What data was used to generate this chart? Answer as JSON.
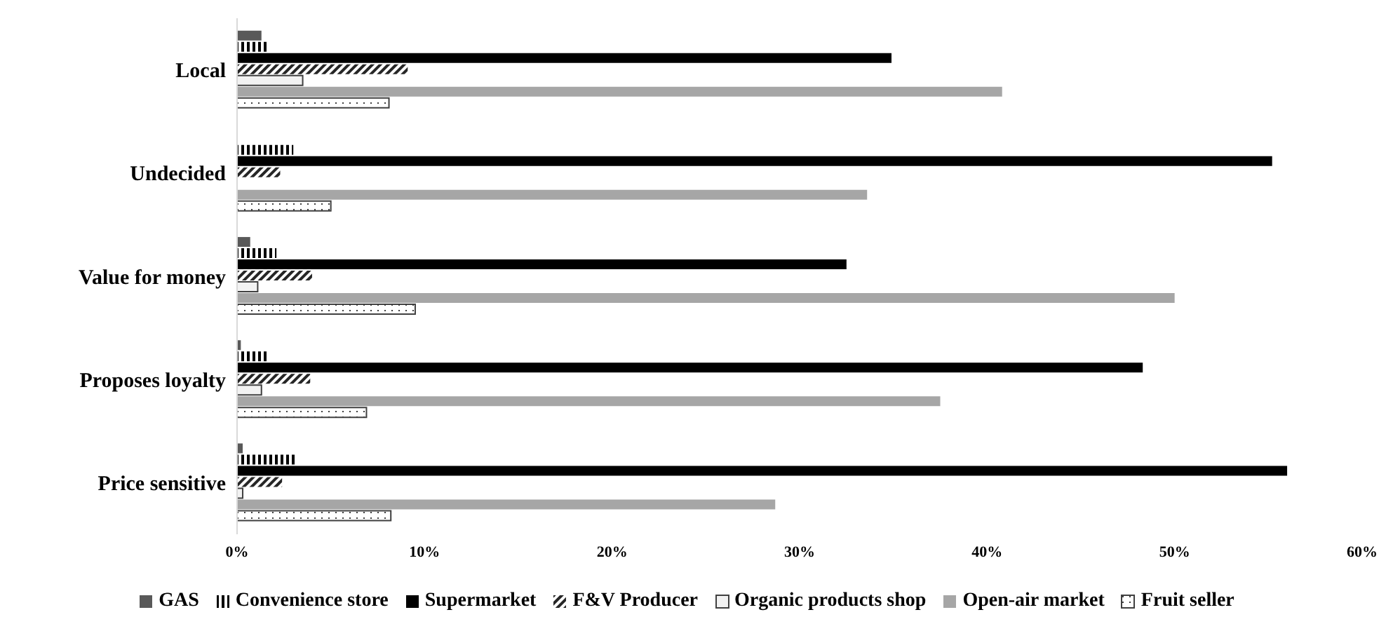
{
  "chart_data": {
    "type": "bar",
    "orientation": "horizontal",
    "categories": [
      "Local",
      "Undecided",
      "Value for money",
      "Proposes loyalty",
      "Price sensitive"
    ],
    "series": [
      {
        "name": "GAS",
        "color": "#595959",
        "values": [
          1.3,
          null,
          0.7,
          0.2,
          0.3
        ]
      },
      {
        "name": "Convenience store",
        "color": "#000000",
        "values": [
          1.6,
          3.0,
          2.1,
          1.7,
          3.2
        ]
      },
      {
        "name": "Supermarket",
        "color": "#000000",
        "values": [
          34.9,
          55.2,
          32.5,
          48.3,
          56.0
        ]
      },
      {
        "name": "F&V Producer",
        "color": "#262626",
        "values": [
          9.1,
          2.3,
          4.0,
          3.9,
          2.4
        ]
      },
      {
        "name": "Organic products shop",
        "color": "#f2f2f2",
        "values": [
          3.5,
          null,
          1.1,
          1.3,
          0.3
        ]
      },
      {
        "name": "Open-air market",
        "color": "#a6a6a6",
        "values": [
          40.8,
          33.6,
          50.0,
          37.5,
          28.7
        ]
      },
      {
        "name": "Fruit seller",
        "color": "#404040",
        "values": [
          8.1,
          5.0,
          9.5,
          6.9,
          8.2
        ]
      }
    ],
    "xlim": [
      0,
      60
    ],
    "xticks": [
      {
        "value": 0,
        "label": "0%"
      },
      {
        "value": 10,
        "label": "10%"
      },
      {
        "value": 20,
        "label": "20%"
      },
      {
        "value": 30,
        "label": "30%"
      },
      {
        "value": 40,
        "label": "40%"
      },
      {
        "value": 50,
        "label": "50%"
      },
      {
        "value": 60,
        "label": "60%"
      }
    ],
    "grid": false,
    "legend": "bottom"
  }
}
